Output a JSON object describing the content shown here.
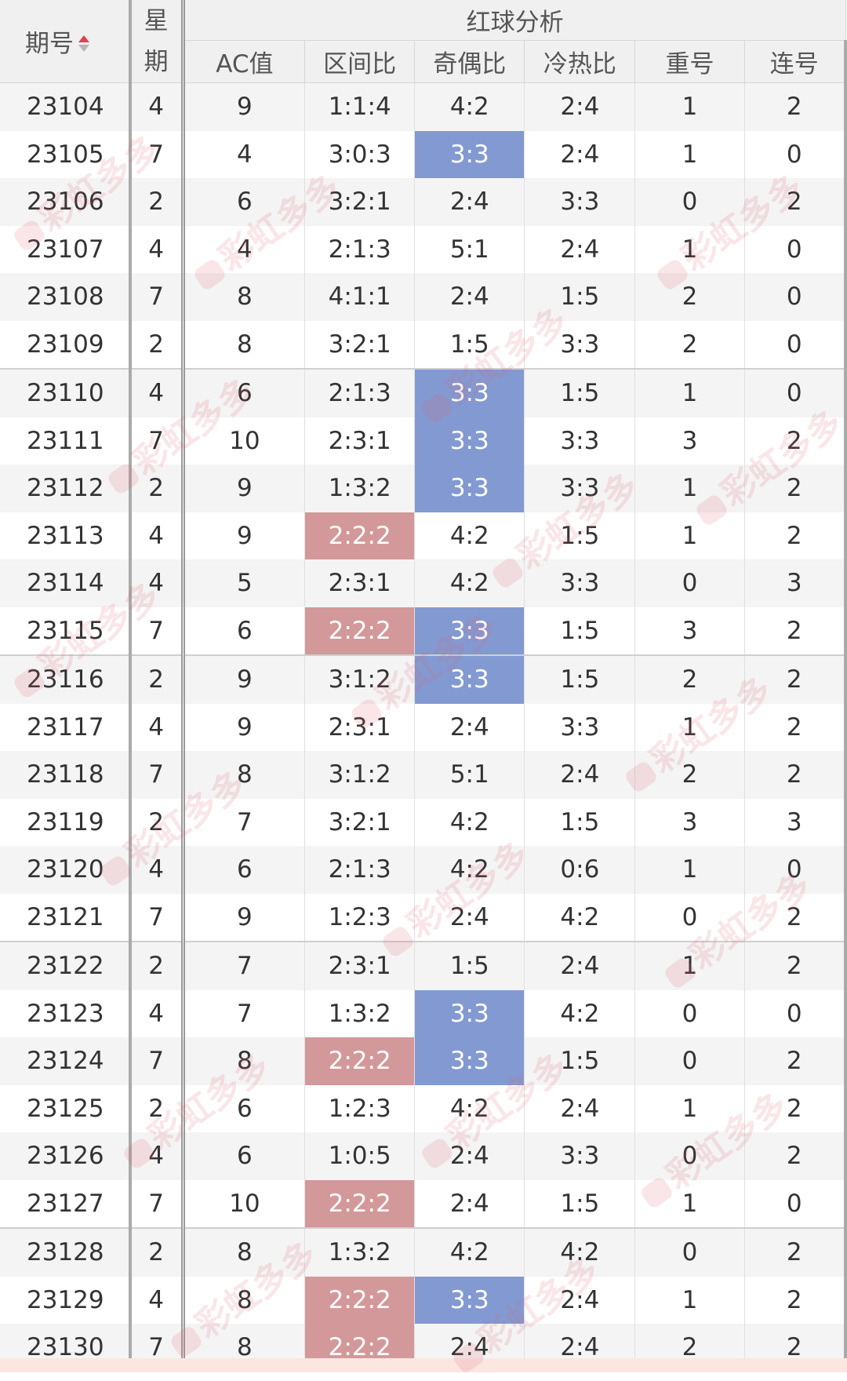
{
  "header": {
    "issue": "期号",
    "week_top": "星",
    "week_bottom": "期",
    "group_title": "红球分析",
    "columns": [
      "AC值",
      "区间比",
      "奇偶比",
      "冷热比",
      "重号",
      "连号"
    ]
  },
  "rows": [
    {
      "issue": "23104",
      "week": "4",
      "ac": "9",
      "zone": "1:1:4",
      "odd": "4:2",
      "hot": "2:4",
      "repeat": "1",
      "consec": "2"
    },
    {
      "issue": "23105",
      "week": "7",
      "ac": "4",
      "zone": "3:0:3",
      "odd": "3:3",
      "hot": "2:4",
      "repeat": "1",
      "consec": "0"
    },
    {
      "issue": "23106",
      "week": "2",
      "ac": "6",
      "zone": "3:2:1",
      "odd": "2:4",
      "hot": "3:3",
      "repeat": "0",
      "consec": "2"
    },
    {
      "issue": "23107",
      "week": "4",
      "ac": "4",
      "zone": "2:1:3",
      "odd": "5:1",
      "hot": "2:4",
      "repeat": "1",
      "consec": "0"
    },
    {
      "issue": "23108",
      "week": "7",
      "ac": "8",
      "zone": "4:1:1",
      "odd": "2:4",
      "hot": "1:5",
      "repeat": "2",
      "consec": "0"
    },
    {
      "issue": "23109",
      "week": "2",
      "ac": "8",
      "zone": "3:2:1",
      "odd": "1:5",
      "hot": "3:3",
      "repeat": "2",
      "consec": "0"
    },
    {
      "issue": "23110",
      "week": "4",
      "ac": "6",
      "zone": "2:1:3",
      "odd": "3:3",
      "hot": "1:5",
      "repeat": "1",
      "consec": "0"
    },
    {
      "issue": "23111",
      "week": "7",
      "ac": "10",
      "zone": "2:3:1",
      "odd": "3:3",
      "hot": "3:3",
      "repeat": "3",
      "consec": "2"
    },
    {
      "issue": "23112",
      "week": "2",
      "ac": "9",
      "zone": "1:3:2",
      "odd": "3:3",
      "hot": "3:3",
      "repeat": "1",
      "consec": "2"
    },
    {
      "issue": "23113",
      "week": "4",
      "ac": "9",
      "zone": "2:2:2",
      "odd": "4:2",
      "hot": "1:5",
      "repeat": "1",
      "consec": "2"
    },
    {
      "issue": "23114",
      "week": "4",
      "ac": "5",
      "zone": "2:3:1",
      "odd": "4:2",
      "hot": "3:3",
      "repeat": "0",
      "consec": "3"
    },
    {
      "issue": "23115",
      "week": "7",
      "ac": "6",
      "zone": "2:2:2",
      "odd": "3:3",
      "hot": "1:5",
      "repeat": "3",
      "consec": "2"
    },
    {
      "issue": "23116",
      "week": "2",
      "ac": "9",
      "zone": "3:1:2",
      "odd": "3:3",
      "hot": "1:5",
      "repeat": "2",
      "consec": "2"
    },
    {
      "issue": "23117",
      "week": "4",
      "ac": "9",
      "zone": "2:3:1",
      "odd": "2:4",
      "hot": "3:3",
      "repeat": "1",
      "consec": "2"
    },
    {
      "issue": "23118",
      "week": "7",
      "ac": "8",
      "zone": "3:1:2",
      "odd": "5:1",
      "hot": "2:4",
      "repeat": "2",
      "consec": "2"
    },
    {
      "issue": "23119",
      "week": "2",
      "ac": "7",
      "zone": "3:2:1",
      "odd": "4:2",
      "hot": "1:5",
      "repeat": "3",
      "consec": "3"
    },
    {
      "issue": "23120",
      "week": "4",
      "ac": "6",
      "zone": "2:1:3",
      "odd": "4:2",
      "hot": "0:6",
      "repeat": "1",
      "consec": "0"
    },
    {
      "issue": "23121",
      "week": "7",
      "ac": "9",
      "zone": "1:2:3",
      "odd": "2:4",
      "hot": "4:2",
      "repeat": "0",
      "consec": "2"
    },
    {
      "issue": "23122",
      "week": "2",
      "ac": "7",
      "zone": "2:3:1",
      "odd": "1:5",
      "hot": "2:4",
      "repeat": "1",
      "consec": "2"
    },
    {
      "issue": "23123",
      "week": "4",
      "ac": "7",
      "zone": "1:3:2",
      "odd": "3:3",
      "hot": "4:2",
      "repeat": "0",
      "consec": "0"
    },
    {
      "issue": "23124",
      "week": "7",
      "ac": "8",
      "zone": "2:2:2",
      "odd": "3:3",
      "hot": "1:5",
      "repeat": "0",
      "consec": "2"
    },
    {
      "issue": "23125",
      "week": "2",
      "ac": "6",
      "zone": "1:2:3",
      "odd": "4:2",
      "hot": "2:4",
      "repeat": "1",
      "consec": "2"
    },
    {
      "issue": "23126",
      "week": "4",
      "ac": "6",
      "zone": "1:0:5",
      "odd": "2:4",
      "hot": "3:3",
      "repeat": "0",
      "consec": "2"
    },
    {
      "issue": "23127",
      "week": "7",
      "ac": "10",
      "zone": "2:2:2",
      "odd": "2:4",
      "hot": "1:5",
      "repeat": "1",
      "consec": "0"
    },
    {
      "issue": "23128",
      "week": "2",
      "ac": "8",
      "zone": "1:3:2",
      "odd": "4:2",
      "hot": "4:2",
      "repeat": "0",
      "consec": "2"
    },
    {
      "issue": "23129",
      "week": "4",
      "ac": "8",
      "zone": "2:2:2",
      "odd": "3:3",
      "hot": "2:4",
      "repeat": "1",
      "consec": "2"
    },
    {
      "issue": "23130",
      "week": "7",
      "ac": "8",
      "zone": "2:2:2",
      "odd": "2:4",
      "hot": "2:4",
      "repeat": "2",
      "consec": "2"
    }
  ],
  "highlight": {
    "zone_value": "2:2:2",
    "odd_value": "3:3",
    "zone_color": "#d3999a",
    "odd_color": "#8399d1"
  },
  "watermark": {
    "text": "彩虹多多"
  },
  "sort_icon": "sort-arrows-icon"
}
